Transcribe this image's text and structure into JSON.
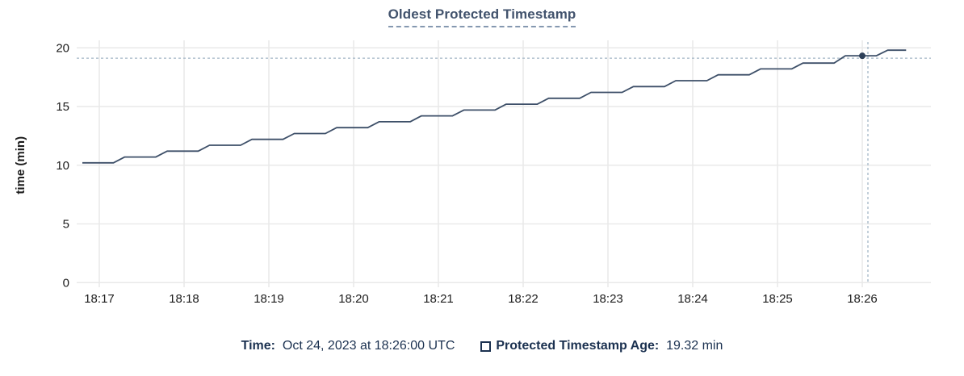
{
  "title": "Oldest Protected Timestamp",
  "colors": {
    "background": "#ffffff",
    "title": "#42536d",
    "title_underline": "#8598b0",
    "axis_text": "#1c1c1c",
    "grid": "#e9e9e9",
    "line": "#3d4f68",
    "dot": "#2e4059",
    "crosshair": "#a3b6c6",
    "legend_text": "#1b3150"
  },
  "chart_data": {
    "type": "line",
    "title": "Oldest Protected Timestamp",
    "xlabel": "",
    "ylabel": "time (min)",
    "ylim": [
      0,
      20
    ],
    "yticks": [
      0,
      5,
      10,
      15,
      20
    ],
    "xticks": [
      "18:17",
      "18:18",
      "18:19",
      "18:20",
      "18:21",
      "18:22",
      "18:23",
      "18:24",
      "18:25",
      "18:26"
    ],
    "x_tick_interval_seconds": 60,
    "grid": true,
    "legend_position": "bottom",
    "series": [
      {
        "name": "Protected Timestamp Age",
        "unit": "min",
        "x_units": "seconds relative to 18:17:00",
        "points": [
          [
            -12,
            10.2
          ],
          [
            10,
            10.2
          ],
          [
            18,
            10.7
          ],
          [
            40,
            10.7
          ],
          [
            48,
            11.2
          ],
          [
            70,
            11.2
          ],
          [
            78,
            11.7
          ],
          [
            100,
            11.7
          ],
          [
            108,
            12.2
          ],
          [
            130,
            12.2
          ],
          [
            138,
            12.7
          ],
          [
            160,
            12.7
          ],
          [
            168,
            13.2
          ],
          [
            190,
            13.2
          ],
          [
            198,
            13.7
          ],
          [
            220,
            13.7
          ],
          [
            228,
            14.2
          ],
          [
            250,
            14.2
          ],
          [
            258,
            14.7
          ],
          [
            280,
            14.7
          ],
          [
            288,
            15.2
          ],
          [
            310,
            15.2
          ],
          [
            318,
            15.7
          ],
          [
            340,
            15.7
          ],
          [
            348,
            16.2
          ],
          [
            370,
            16.2
          ],
          [
            378,
            16.7
          ],
          [
            400,
            16.7
          ],
          [
            408,
            17.2
          ],
          [
            430,
            17.2
          ],
          [
            438,
            17.7
          ],
          [
            460,
            17.7
          ],
          [
            468,
            18.2
          ],
          [
            490,
            18.2
          ],
          [
            498,
            18.7
          ],
          [
            520,
            18.7
          ],
          [
            528,
            19.32
          ],
          [
            550,
            19.32
          ],
          [
            558,
            19.8
          ],
          [
            571,
            19.8
          ]
        ]
      }
    ],
    "highlight": {
      "x_seconds": 540,
      "time": "18:26:00",
      "value": 19.32,
      "crosshair_x_seconds": 544
    }
  },
  "legend": {
    "time_label": "Time:",
    "time_value": "Oct 24, 2023 at 18:26:00 UTC",
    "series_label": "Protected Timestamp Age:",
    "series_value": "19.32 min"
  }
}
